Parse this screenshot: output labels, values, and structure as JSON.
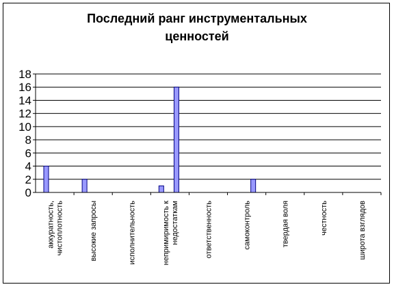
{
  "chart_data": {
    "type": "bar",
    "title_line1": "Последний ранг инструментальных",
    "title_line2": "ценностей",
    "categories": [
      [
        "аккуратность,",
        "чистоплотность"
      ],
      [
        "высокие запросы"
      ],
      [
        "исполнительность"
      ],
      [
        "непримиримость к",
        "недостаткам"
      ],
      [
        "ответственность"
      ],
      [
        "самоконтроль"
      ],
      [
        "твердая воля"
      ],
      [
        "честность"
      ],
      [
        "широта взглядов"
      ]
    ],
    "series": [
      {
        "values": [
          4,
          2,
          0,
          1,
          0,
          0,
          0,
          0,
          0
        ]
      },
      {
        "values": [
          0,
          0,
          0,
          16,
          0,
          2,
          0,
          0,
          0
        ]
      }
    ],
    "ylim": [
      0,
      18
    ],
    "yticks": [
      "0",
      "2",
      "4",
      "6",
      "8",
      "10",
      "12",
      "14",
      "16",
      "18"
    ],
    "grid": true,
    "legend": "none",
    "colors": {
      "bar_fill": "#9999ff",
      "bar_stroke": "#000080",
      "grid": "#000000"
    }
  }
}
